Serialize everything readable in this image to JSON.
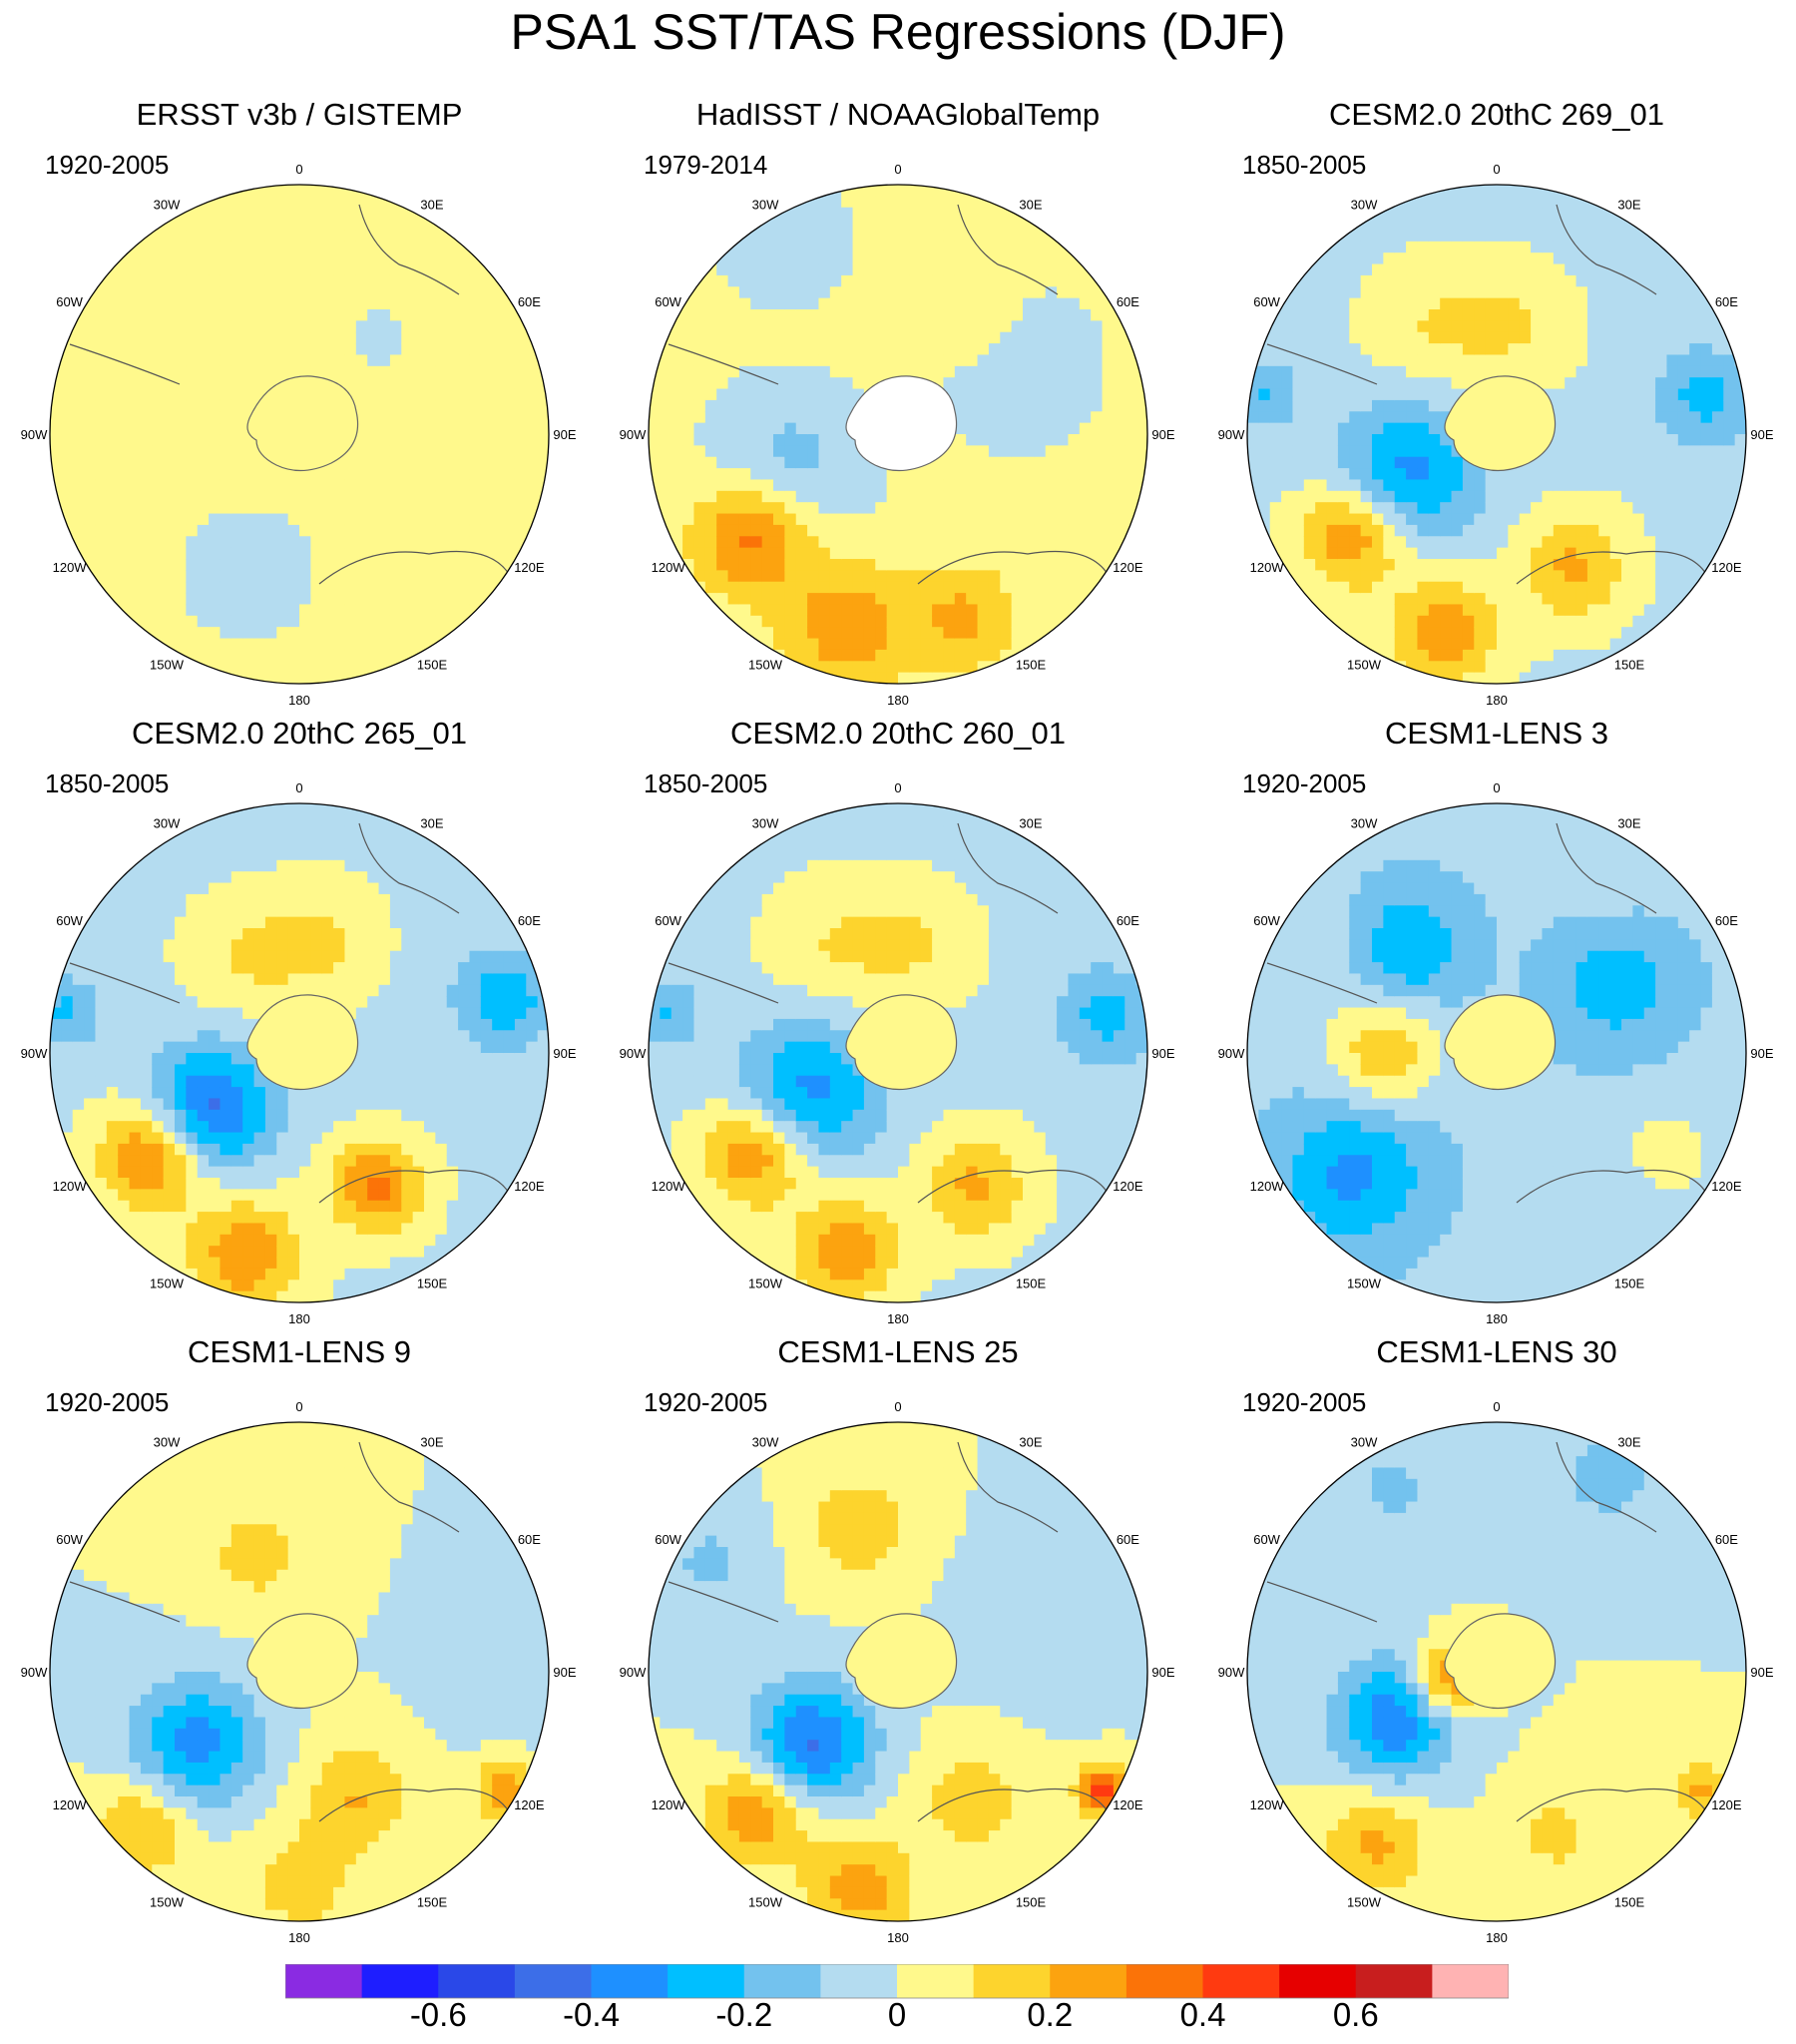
{
  "title": "PSA1 SST/TAS Regressions (DJF)",
  "panels": [
    {
      "title": "ERSST v3b / GISTEMP",
      "period": "1920-2005",
      "pattern": "weak",
      "antarctica_missing": false
    },
    {
      "title": "HadISST / NOAAGlobalTemp",
      "period": "1979-2014",
      "pattern": "obs2",
      "antarctica_missing": true
    },
    {
      "title": "CESM2.0 20thC 269_01",
      "period": "1850-2005",
      "pattern": "strong",
      "antarctica_missing": false
    },
    {
      "title": "CESM2.0 20thC 265_01",
      "period": "1850-2005",
      "pattern": "strong2",
      "antarctica_missing": false
    },
    {
      "title": "CESM2.0 20thC 260_01",
      "period": "1850-2005",
      "pattern": "strong",
      "antarctica_missing": false
    },
    {
      "title": "CESM1-LENS 3",
      "period": "1920-2005",
      "pattern": "lens3",
      "antarctica_missing": false
    },
    {
      "title": "CESM1-LENS 9",
      "period": "1920-2005",
      "pattern": "lens9",
      "antarctica_missing": false
    },
    {
      "title": "CESM1-LENS 25",
      "period": "1920-2005",
      "pattern": "lens25",
      "antarctica_missing": false
    },
    {
      "title": "CESM1-LENS 30",
      "period": "1920-2005",
      "pattern": "lens30",
      "antarctica_missing": false
    }
  ],
  "longitude_labels": [
    "0",
    "30E",
    "60E",
    "90E",
    "120E",
    "150E",
    "180",
    "150W",
    "120W",
    "90W",
    "60W",
    "30W"
  ],
  "colorbar": {
    "colors": [
      "#8a2be2",
      "#1e1eff",
      "#2a48e8",
      "#3c6ee8",
      "#1e90ff",
      "#00bfff",
      "#73c2ee",
      "#b4dcf0",
      "#fff98c",
      "#fdd42d",
      "#fca30f",
      "#fb7308",
      "#ff3a10",
      "#e60000",
      "#c81e1e",
      "#ffb3b3"
    ],
    "bounds": [
      -0.7,
      -0.6,
      -0.5,
      -0.4,
      -0.3,
      -0.2,
      -0.1,
      0,
      0.1,
      0.2,
      0.3,
      0.4,
      0.5,
      0.6,
      0.7
    ],
    "tick_labels": [
      "-0.6",
      "-0.4",
      "-0.2",
      "0",
      "0.2",
      "0.4",
      "0.6"
    ],
    "tick_values": [
      -0.6,
      -0.4,
      -0.2,
      0,
      0.2,
      0.4,
      0.6
    ]
  }
}
